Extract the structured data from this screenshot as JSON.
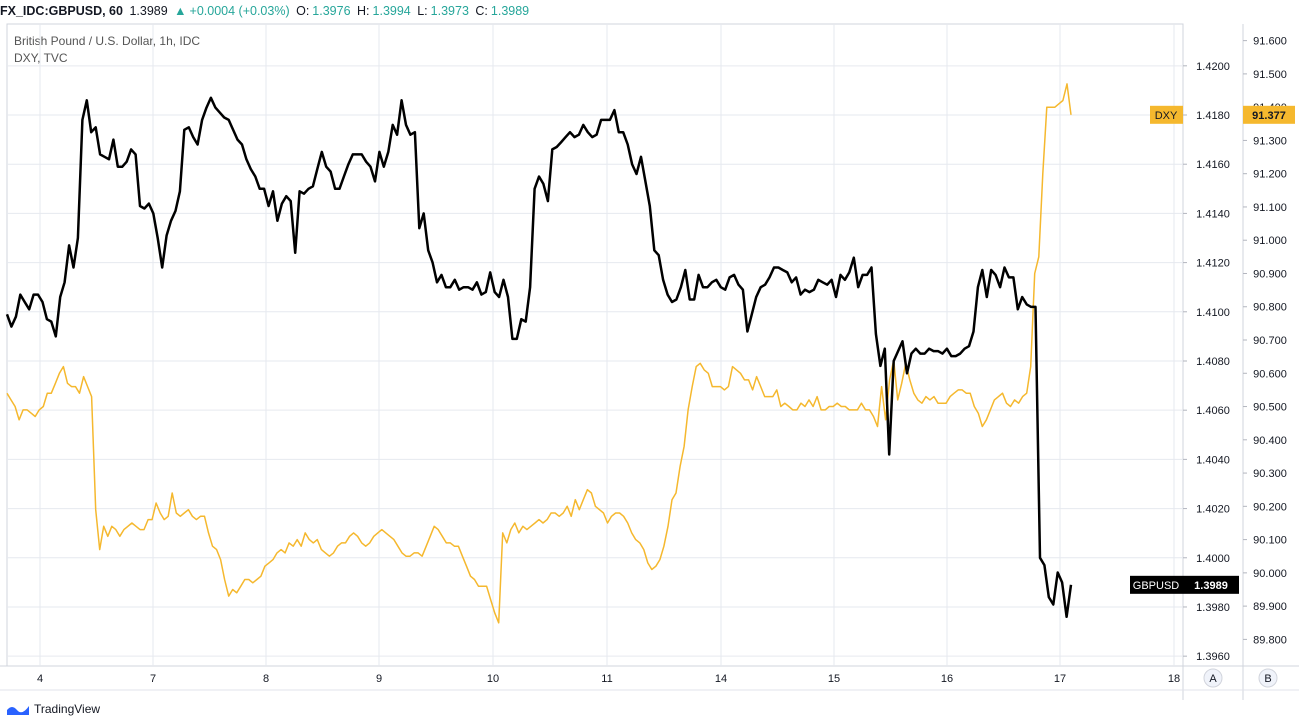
{
  "header": {
    "symbol": "FX_IDC:GBPUSD, 60",
    "last": "1.3989",
    "change": "+0.0004 (+0.03%)",
    "o_label": "O:",
    "o": "1.3976",
    "h_label": "H:",
    "h": "1.3994",
    "l_label": "L:",
    "l": "1.3973",
    "c_label": "C:",
    "c": "1.3989"
  },
  "legend": {
    "main": "British Pound / U.S. Dollar, 1h, IDC",
    "overlay": "DXY, TVC"
  },
  "buttons": {
    "a": "A",
    "b": "B"
  },
  "footer": {
    "brand": "TradingView"
  },
  "colors": {
    "gbpusd": "#000000",
    "dxy": "#f5b82e",
    "grid": "#e6e9ef",
    "badge_dark": "#000000"
  },
  "chart_data": {
    "type": "line",
    "x_ticks": [
      "4",
      "7",
      "8",
      "9",
      "10",
      "11",
      "14",
      "15",
      "16",
      "17",
      "18"
    ],
    "left_axis": {
      "series": "GBPUSD",
      "ticks": [
        "1.4200",
        "1.4180",
        "1.4160",
        "1.4140",
        "1.4120",
        "1.4100",
        "1.4080",
        "1.4060",
        "1.4040",
        "1.4020",
        "1.4000",
        "1.3980",
        "1.3960"
      ],
      "ylim": [
        1.3956,
        1.4217
      ]
    },
    "right_axis": {
      "series": "DXY",
      "ticks": [
        "91.600",
        "91.500",
        "91.400",
        "91.300",
        "91.200",
        "91.100",
        "91.000",
        "90.900",
        "90.800",
        "90.700",
        "90.600",
        "90.500",
        "90.400",
        "90.300",
        "90.200",
        "90.100",
        "90.000",
        "89.900",
        "89.800"
      ],
      "ylim": [
        89.72,
        91.65
      ]
    },
    "series": [
      {
        "name": "GBPUSD",
        "last_label": "1.3989",
        "values": [
          1.4099,
          1.4094,
          1.4098,
          1.4107,
          1.4104,
          1.4101,
          1.4107,
          1.4107,
          1.4104,
          1.4097,
          1.4096,
          1.409,
          1.4106,
          1.4112,
          1.4127,
          1.4118,
          1.413,
          1.4178,
          1.4186,
          1.4173,
          1.4175,
          1.4164,
          1.4163,
          1.4162,
          1.417,
          1.4159,
          1.4159,
          1.4161,
          1.4166,
          1.4164,
          1.4143,
          1.4142,
          1.4144,
          1.414,
          1.413,
          1.4118,
          1.4131,
          1.4137,
          1.4141,
          1.4149,
          1.4174,
          1.4175,
          1.4171,
          1.4168,
          1.4178,
          1.4183,
          1.4187,
          1.4183,
          1.4181,
          1.4179,
          1.4178,
          1.4174,
          1.417,
          1.4168,
          1.4162,
          1.4158,
          1.4155,
          1.415,
          1.415,
          1.4143,
          1.4149,
          1.4137,
          1.4144,
          1.4147,
          1.4145,
          1.4124,
          1.4149,
          1.4148,
          1.415,
          1.4151,
          1.4158,
          1.4165,
          1.4159,
          1.4157,
          1.415,
          1.415,
          1.4155,
          1.416,
          1.4164,
          1.4164,
          1.4164,
          1.4161,
          1.4159,
          1.4153,
          1.4165,
          1.4159,
          1.4165,
          1.4176,
          1.4172,
          1.4186,
          1.4176,
          1.4172,
          1.4173,
          1.4134,
          1.414,
          1.4125,
          1.412,
          1.4112,
          1.4115,
          1.411,
          1.411,
          1.4113,
          1.4109,
          1.411,
          1.411,
          1.4109,
          1.4112,
          1.4107,
          1.4108,
          1.4116,
          1.4108,
          1.4106,
          1.4113,
          1.4106,
          1.4089,
          1.4089,
          1.4097,
          1.4096,
          1.411,
          1.415,
          1.4155,
          1.4152,
          1.4145,
          1.4166,
          1.4167,
          1.4169,
          1.4171,
          1.4173,
          1.4171,
          1.4172,
          1.4176,
          1.4173,
          1.4171,
          1.4172,
          1.4178,
          1.4178,
          1.4178,
          1.4182,
          1.4173,
          1.4173,
          1.4168,
          1.416,
          1.4156,
          1.4163,
          1.4153,
          1.4143,
          1.4125,
          1.4123,
          1.4113,
          1.4107,
          1.4104,
          1.4105,
          1.411,
          1.4117,
          1.4105,
          1.4105,
          1.4115,
          1.411,
          1.411,
          1.4112,
          1.4113,
          1.411,
          1.4109,
          1.4114,
          1.4115,
          1.4111,
          1.4109,
          1.4092,
          1.4099,
          1.4106,
          1.411,
          1.4111,
          1.4114,
          1.4118,
          1.4118,
          1.4117,
          1.4116,
          1.4112,
          1.4114,
          1.4107,
          1.4109,
          1.4108,
          1.4109,
          1.4113,
          1.4112,
          1.4111,
          1.4113,
          1.4106,
          1.4115,
          1.4113,
          1.4116,
          1.4122,
          1.411,
          1.4115,
          1.4115,
          1.4118,
          1.4091,
          1.4078,
          1.4085,
          1.4042,
          1.408,
          1.4084,
          1.4088,
          1.4075,
          1.4083,
          1.4085,
          1.4083,
          1.4083,
          1.4085,
          1.4084,
          1.4084,
          1.4083,
          1.4085,
          1.4082,
          1.4082,
          1.4083,
          1.4085,
          1.4086,
          1.4092,
          1.411,
          1.4117,
          1.4106,
          1.4117,
          1.4115,
          1.411,
          1.4118,
          1.4114,
          1.4114,
          1.4101,
          1.4106,
          1.4103,
          1.4102,
          1.4102,
          1.4,
          1.3997,
          1.3984,
          1.3981,
          1.3994,
          1.399,
          1.3976,
          1.3989
        ]
      },
      {
        "name": "DXY",
        "last_label": "91.377",
        "badge": "DXY",
        "values": [
          90.54,
          90.52,
          90.5,
          90.46,
          90.49,
          90.49,
          90.48,
          90.47,
          90.49,
          90.5,
          90.54,
          90.54,
          90.57,
          90.6,
          90.62,
          90.57,
          90.56,
          90.56,
          90.54,
          90.59,
          90.56,
          90.53,
          90.19,
          90.07,
          90.14,
          90.11,
          90.14,
          90.13,
          90.11,
          90.13,
          90.14,
          90.15,
          90.14,
          90.13,
          90.13,
          90.16,
          90.16,
          90.21,
          90.18,
          90.16,
          90.17,
          90.24,
          90.18,
          90.17,
          90.18,
          90.19,
          90.17,
          90.16,
          90.17,
          90.17,
          90.12,
          90.08,
          90.07,
          90.04,
          89.98,
          89.93,
          89.95,
          89.94,
          89.96,
          89.98,
          89.98,
          89.97,
          89.98,
          89.99,
          90.02,
          90.03,
          90.04,
          90.06,
          90.07,
          90.06,
          90.09,
          90.08,
          90.1,
          90.08,
          90.12,
          90.1,
          90.09,
          90.1,
          90.07,
          90.06,
          90.05,
          90.06,
          90.08,
          90.09,
          90.09,
          90.11,
          90.12,
          90.11,
          90.09,
          90.08,
          90.09,
          90.11,
          90.12,
          90.13,
          90.12,
          90.11,
          90.1,
          90.08,
          90.06,
          90.05,
          90.05,
          90.06,
          90.06,
          90.05,
          90.08,
          90.11,
          90.14,
          90.13,
          90.11,
          90.09,
          90.09,
          90.08,
          90.08,
          90.05,
          90.02,
          89.99,
          89.98,
          89.96,
          89.96,
          89.96,
          89.92,
          89.88,
          89.85,
          90.12,
          90.09,
          90.13,
          90.15,
          90.12,
          90.14,
          90.13,
          90.14,
          90.15,
          90.16,
          90.15,
          90.16,
          90.18,
          90.18,
          90.17,
          90.18,
          90.2,
          90.17,
          90.22,
          90.19,
          90.22,
          90.25,
          90.24,
          90.2,
          90.19,
          90.18,
          90.15,
          90.17,
          90.18,
          90.18,
          90.17,
          90.15,
          90.12,
          90.1,
          90.09,
          90.07,
          90.03,
          90.01,
          90.02,
          90.04,
          90.08,
          90.14,
          90.22,
          90.24,
          90.32,
          90.38,
          90.49,
          90.56,
          90.62,
          90.63,
          90.61,
          90.6,
          90.56,
          90.56,
          90.56,
          90.55,
          90.56,
          90.62,
          90.61,
          90.6,
          90.58,
          90.58,
          90.55,
          90.59,
          90.56,
          90.53,
          90.53,
          90.53,
          90.55,
          90.5,
          90.51,
          90.5,
          90.49,
          90.49,
          90.51,
          90.5,
          90.52,
          90.5,
          90.53,
          90.49,
          90.49,
          90.5,
          90.5,
          90.51,
          90.5,
          90.5,
          90.49,
          90.49,
          90.49,
          90.51,
          90.49,
          90.49,
          90.47,
          90.44,
          90.56,
          90.46,
          90.58,
          90.64,
          90.52,
          90.57,
          90.63,
          90.58,
          90.54,
          90.52,
          90.51,
          90.53,
          90.52,
          90.53,
          90.51,
          90.51,
          90.51,
          90.53,
          90.54,
          90.55,
          90.55,
          90.54,
          90.54,
          90.5,
          90.48,
          90.44,
          90.46,
          90.49,
          90.52,
          90.53,
          90.54,
          90.51,
          90.5,
          90.52,
          90.51,
          90.53,
          90.54,
          90.62,
          90.9,
          90.95,
          91.2,
          91.4,
          91.4,
          91.4,
          91.41,
          91.42,
          91.47,
          91.377
        ]
      }
    ]
  }
}
